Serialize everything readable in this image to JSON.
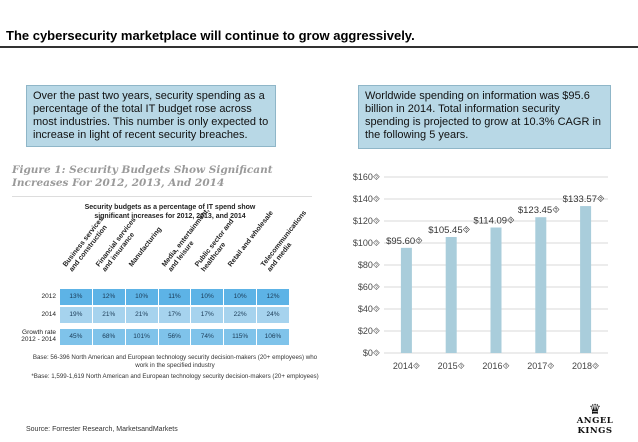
{
  "slide": {
    "title": "The cybersecurity marketplace will continue to grow aggressively.",
    "source": "Source: Forrester Research, MarketsandMarkets"
  },
  "callouts": {
    "left": "Over the past two years, security spending as a percentage of the total IT budget rose across most industries. This number is only expected to increase in light of recent security breaches.",
    "right": "Worldwide spending on information was $95.6 billion in 2014. Total information security spending is projected to grow at 10.3% CAGR in the following 5 years."
  },
  "figure": {
    "title": "Figure 1: Security Budgets Show Significant Increases For 2012, 2013, And 2014",
    "table_heading": "Security budgets as a percentage of IT spend show significant increases for 2012, 2013, and 2014",
    "columns": [
      "Business services\nand construction",
      "Financial services\nand insurance",
      "Manufacturing",
      "Media, entertainment,\nand leisure",
      "Public sector and\nhealthcare",
      "Retail and wholesale",
      "Telecommunications\nand media"
    ],
    "rows": [
      {
        "label": "2012",
        "values": [
          "13%",
          "12%",
          "10%",
          "11%",
          "10%",
          "10%",
          "12%"
        ]
      },
      {
        "label": "2014",
        "values": [
          "19%",
          "21%",
          "21%",
          "17%",
          "17%",
          "22%",
          "24%"
        ]
      },
      {
        "label": "Growth rate\n2012 - 2014",
        "values": [
          "45%",
          "68%",
          "101%",
          "56%",
          "74%",
          "115%",
          "106%"
        ]
      }
    ],
    "footnote_1": "Base: 56-396 North American and European technology security decision-makers (20+ employees) who work in the specified industry",
    "footnote_2": "*Base: 1,599-1,619 North American and European technology security decision-makers (20+ employees)"
  },
  "logo": {
    "text": "ANGEL KINGS",
    "icon": "crown-icon"
  },
  "colors": {
    "bar": "#a9cddb",
    "callout_bg": "#b8d8e6",
    "grid": "#d9d9d9"
  },
  "chart_data": {
    "type": "bar",
    "title": "",
    "xlabel": "",
    "ylabel": "",
    "categories": [
      "2014",
      "2015",
      "2016",
      "2017",
      "2018"
    ],
    "category_labels": [
      "2014⯑",
      "2015⯑",
      "2016⯑",
      "2017⯑",
      "2018⯑"
    ],
    "values": [
      95.6,
      105.45,
      114.09,
      123.45,
      133.57
    ],
    "data_labels": [
      "$95.60⯑",
      "$105.45⯑",
      "$114.09⯑",
      "$123.45⯑",
      "$133.57⯑"
    ],
    "ylim": [
      0,
      160
    ],
    "yticks": [
      0,
      20,
      40,
      60,
      80,
      100,
      120,
      140,
      160
    ],
    "ytick_labels": [
      "$0⯑",
      "$20⯑",
      "$40⯑",
      "$60⯑",
      "$80⯑",
      "$100⯑",
      "$120⯑",
      "$140⯑",
      "$160⯑"
    ],
    "grid": true
  }
}
